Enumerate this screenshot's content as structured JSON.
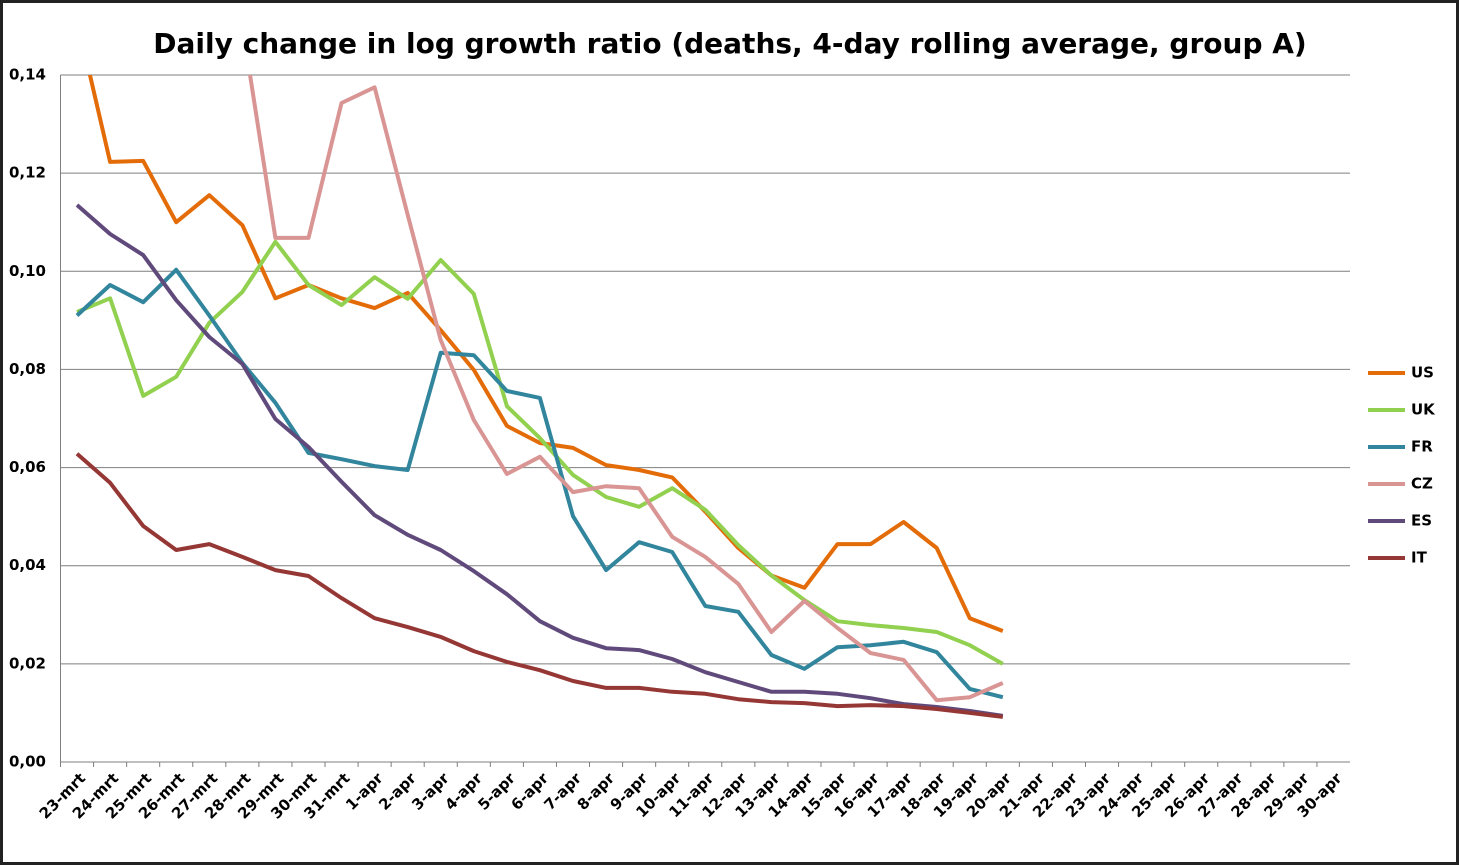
{
  "chart_data": {
    "type": "line",
    "title": "Daily change in log growth ratio (deaths, 4-day rolling average, group A)",
    "categories": [
      "23-mrt",
      "24-mrt",
      "25-mrt",
      "26-mrt",
      "27-mrt",
      "28-mrt",
      "29-mrt",
      "30-mrt",
      "31-mrt",
      "1-apr",
      "2-apr",
      "3-apr",
      "4-apr",
      "5-apr",
      "6-apr",
      "7-apr",
      "8-apr",
      "9-apr",
      "10-apr",
      "11-apr",
      "12-apr",
      "13-apr",
      "14-apr",
      "15-apr",
      "16-apr",
      "17-apr",
      "18-apr",
      "19-apr",
      "20-apr",
      "21-apr",
      "22-apr",
      "23-apr",
      "24-apr",
      "25-apr",
      "26-apr",
      "27-apr",
      "28-apr",
      "29-apr",
      "30-apr"
    ],
    "series": [
      {
        "name": "US",
        "color": "#e36c09",
        "values": [
          0.1514,
          0.1223,
          0.1225,
          0.11,
          0.1155,
          0.1094,
          0.0945,
          0.0972,
          0.0945,
          0.0925,
          0.0956,
          0.088,
          0.0799,
          0.0685,
          0.065,
          0.064,
          0.0605,
          0.0595,
          0.058,
          0.051,
          0.0436,
          0.038,
          0.0355,
          0.0444,
          0.0444,
          0.0489,
          0.0436,
          0.0293,
          0.0267,
          null,
          null,
          null,
          null,
          null,
          null,
          null,
          null,
          null,
          null
        ]
      },
      {
        "name": "UK",
        "color": "#92d050",
        "values": [
          0.0917,
          0.0945,
          0.0746,
          0.0785,
          0.0895,
          0.0958,
          0.106,
          0.0972,
          0.0931,
          0.0988,
          0.0944,
          0.1023,
          0.0954,
          0.0725,
          0.066,
          0.0585,
          0.054,
          0.052,
          0.0558,
          0.0514,
          0.0442,
          0.038,
          0.033,
          0.0287,
          0.0279,
          0.0273,
          0.0265,
          0.0238,
          0.02,
          null,
          null,
          null,
          null,
          null,
          null,
          null,
          null,
          null,
          null
        ]
      },
      {
        "name": "FR",
        "color": "#31859c",
        "values": [
          0.091,
          0.0972,
          0.0937,
          0.1003,
          0.091,
          0.0813,
          0.0732,
          0.063,
          0.0617,
          0.0603,
          0.0595,
          0.0834,
          0.0829,
          0.0756,
          0.0742,
          0.0501,
          0.0391,
          0.0448,
          0.0428,
          0.0318,
          0.0306,
          0.0218,
          0.019,
          0.0234,
          0.0238,
          0.0245,
          0.0224,
          0.0149,
          0.0132,
          null,
          null,
          null,
          null,
          null,
          null,
          null,
          null,
          null,
          null
        ]
      },
      {
        "name": "CZ",
        "color": "#d99594",
        "values": [
          null,
          null,
          null,
          null,
          null,
          0.15,
          0.1068,
          0.1068,
          0.1343,
          0.1375,
          0.1115,
          0.086,
          0.0697,
          0.0587,
          0.0622,
          0.055,
          0.0562,
          0.0558,
          0.0459,
          0.0418,
          0.0363,
          0.0265,
          0.0328,
          0.0273,
          0.0222,
          0.0208,
          0.0126,
          0.0132,
          0.0161,
          null,
          null,
          null,
          null,
          null,
          null,
          null,
          null,
          null,
          null
        ]
      },
      {
        "name": "ES",
        "color": "#604a7b",
        "values": [
          0.1135,
          0.1076,
          0.1033,
          0.0941,
          0.0866,
          0.0811,
          0.0699,
          0.0642,
          0.0571,
          0.0503,
          0.0463,
          0.0432,
          0.0389,
          0.0342,
          0.0287,
          0.0253,
          0.0232,
          0.0228,
          0.021,
          0.0183,
          0.0163,
          0.0143,
          0.0143,
          0.0139,
          0.013,
          0.0118,
          0.0112,
          0.0104,
          0.0094,
          null,
          null,
          null,
          null,
          null,
          null,
          null,
          null,
          null,
          null
        ]
      },
      {
        "name": "IT",
        "color": "#953735",
        "values": [
          0.0628,
          0.0569,
          0.0481,
          0.0432,
          0.0444,
          0.0418,
          0.0391,
          0.0379,
          0.0334,
          0.0293,
          0.0275,
          0.0255,
          0.0226,
          0.0204,
          0.0187,
          0.0165,
          0.0151,
          0.0151,
          0.0143,
          0.0139,
          0.0128,
          0.0122,
          0.012,
          0.0114,
          0.0116,
          0.0114,
          0.0108,
          0.01,
          0.0092,
          null,
          null,
          null,
          null,
          null,
          null,
          null,
          null,
          null,
          null
        ]
      }
    ],
    "ylim": [
      0,
      0.14
    ],
    "yticks": [
      {
        "value": 0,
        "label": "0,00"
      },
      {
        "value": 0.02,
        "label": "0,02"
      },
      {
        "value": 0.04,
        "label": "0,04"
      },
      {
        "value": 0.06,
        "label": "0,06"
      },
      {
        "value": 0.08,
        "label": "0,08"
      },
      {
        "value": 0.1,
        "label": "0,10"
      },
      {
        "value": 0.12,
        "label": "0,12"
      },
      {
        "value": 0.14,
        "label": "0,14"
      }
    ],
    "grid": true,
    "legend": "right"
  }
}
